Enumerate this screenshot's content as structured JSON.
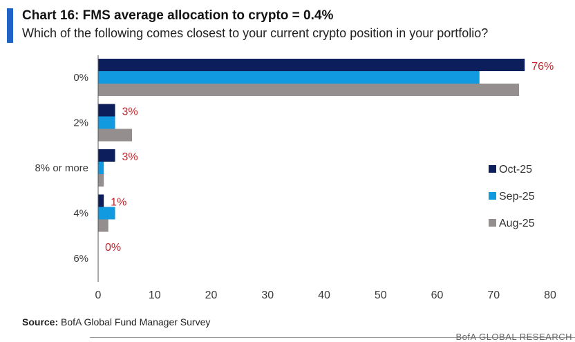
{
  "header": {
    "title": "Chart 16: FMS average allocation to crypto = 0.4%",
    "subtitle": "Which of the following comes closest to your current crypto position in your portfolio?"
  },
  "colors": {
    "accent": "#1f62c8",
    "label": "#c0262c"
  },
  "chart_data": {
    "type": "bar",
    "orientation": "horizontal",
    "title": "Chart 16: FMS average allocation to crypto = 0.4%",
    "subtitle": "Which of the following comes closest to your current crypto position in your portfolio?",
    "categories": [
      "0%",
      "2%",
      "8% or more",
      "4%",
      "6%"
    ],
    "series": [
      {
        "name": "Oct-25",
        "color": "#0c1f5c",
        "values": [
          75.5,
          3,
          3,
          1,
          0
        ]
      },
      {
        "name": "Sep-25",
        "color": "#129ae0",
        "values": [
          67.5,
          3,
          1,
          3,
          0
        ]
      },
      {
        "name": "Aug-25",
        "color": "#958e8e",
        "values": [
          74.5,
          6,
          1,
          1.8,
          0
        ]
      }
    ],
    "data_labels": [
      "76%",
      "3%",
      "3%",
      "1%",
      "0%"
    ],
    "xlim": [
      0,
      80
    ],
    "xticks": [
      0,
      10,
      20,
      30,
      40,
      50,
      60,
      70,
      80
    ],
    "xlabel": "",
    "ylabel": "",
    "legend_position": "right"
  },
  "legend": {
    "items": [
      "Oct-25",
      "Sep-25",
      "Aug-25"
    ]
  },
  "source": {
    "label": "Source:",
    "text": "BofA Global Fund Manager Survey"
  },
  "brand": "BofA GLOBAL RESEARCH"
}
